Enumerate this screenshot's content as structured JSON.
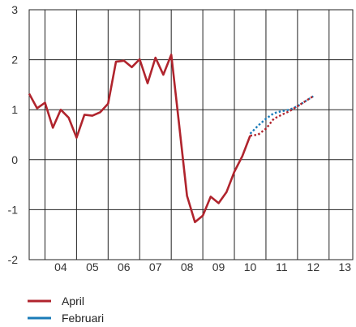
{
  "chart_data": {
    "type": "line",
    "title": "",
    "xlabel": "",
    "ylabel": "",
    "x_ticks": [
      "04",
      "05",
      "06",
      "07",
      "08",
      "09",
      "10",
      "11",
      "12",
      "13"
    ],
    "y_ticks": [
      "3",
      "2",
      "1",
      "0",
      "-1",
      "-2"
    ],
    "ylim": [
      -2,
      3
    ],
    "xlim": [
      2003.5,
      2013.75
    ],
    "grid": true,
    "legend_placement": "bottom-left",
    "series": [
      {
        "name": "April",
        "color": "#b0242d",
        "points": [
          {
            "x": 2003.5,
            "y": 1.32
          },
          {
            "x": 2003.75,
            "y": 1.03
          },
          {
            "x": 2004.0,
            "y": 1.14
          },
          {
            "x": 2004.25,
            "y": 0.64
          },
          {
            "x": 2004.5,
            "y": 1.0
          },
          {
            "x": 2004.75,
            "y": 0.84
          },
          {
            "x": 2005.0,
            "y": 0.44
          },
          {
            "x": 2005.25,
            "y": 0.9
          },
          {
            "x": 2005.5,
            "y": 0.88
          },
          {
            "x": 2005.75,
            "y": 0.95
          },
          {
            "x": 2006.0,
            "y": 1.12
          },
          {
            "x": 2006.25,
            "y": 1.96
          },
          {
            "x": 2006.5,
            "y": 1.98
          },
          {
            "x": 2006.75,
            "y": 1.85
          },
          {
            "x": 2007.0,
            "y": 2.01
          },
          {
            "x": 2007.25,
            "y": 1.53
          },
          {
            "x": 2007.5,
            "y": 2.04
          },
          {
            "x": 2007.75,
            "y": 1.7
          },
          {
            "x": 2008.0,
            "y": 2.1
          },
          {
            "x": 2008.25,
            "y": 0.7
          },
          {
            "x": 2008.5,
            "y": -0.72
          },
          {
            "x": 2008.75,
            "y": -1.25
          },
          {
            "x": 2009.0,
            "y": -1.12
          },
          {
            "x": 2009.25,
            "y": -0.74
          },
          {
            "x": 2009.5,
            "y": -0.87
          },
          {
            "x": 2009.75,
            "y": -0.65
          },
          {
            "x": 2010.0,
            "y": -0.24
          },
          {
            "x": 2010.25,
            "y": 0.07
          },
          {
            "x": 2010.5,
            "y": 0.48
          }
        ],
        "forecast_points": [
          {
            "x": 2010.5,
            "y": 0.48
          },
          {
            "x": 2010.75,
            "y": 0.5
          },
          {
            "x": 2011.0,
            "y": 0.62
          },
          {
            "x": 2011.25,
            "y": 0.82
          },
          {
            "x": 2011.5,
            "y": 0.9
          },
          {
            "x": 2011.75,
            "y": 0.97
          },
          {
            "x": 2012.0,
            "y": 1.07
          },
          {
            "x": 2012.25,
            "y": 1.17
          },
          {
            "x": 2012.5,
            "y": 1.27
          }
        ]
      },
      {
        "name": "Februari",
        "color": "#1a7bb8",
        "forecast_points": [
          {
            "x": 2010.5,
            "y": 0.52
          },
          {
            "x": 2010.75,
            "y": 0.68
          },
          {
            "x": 2011.0,
            "y": 0.82
          },
          {
            "x": 2011.25,
            "y": 0.93
          },
          {
            "x": 2011.5,
            "y": 0.97
          },
          {
            "x": 2011.75,
            "y": 1.0
          },
          {
            "x": 2012.0,
            "y": 1.07
          },
          {
            "x": 2012.25,
            "y": 1.17
          },
          {
            "x": 2012.5,
            "y": 1.27
          }
        ]
      }
    ]
  }
}
